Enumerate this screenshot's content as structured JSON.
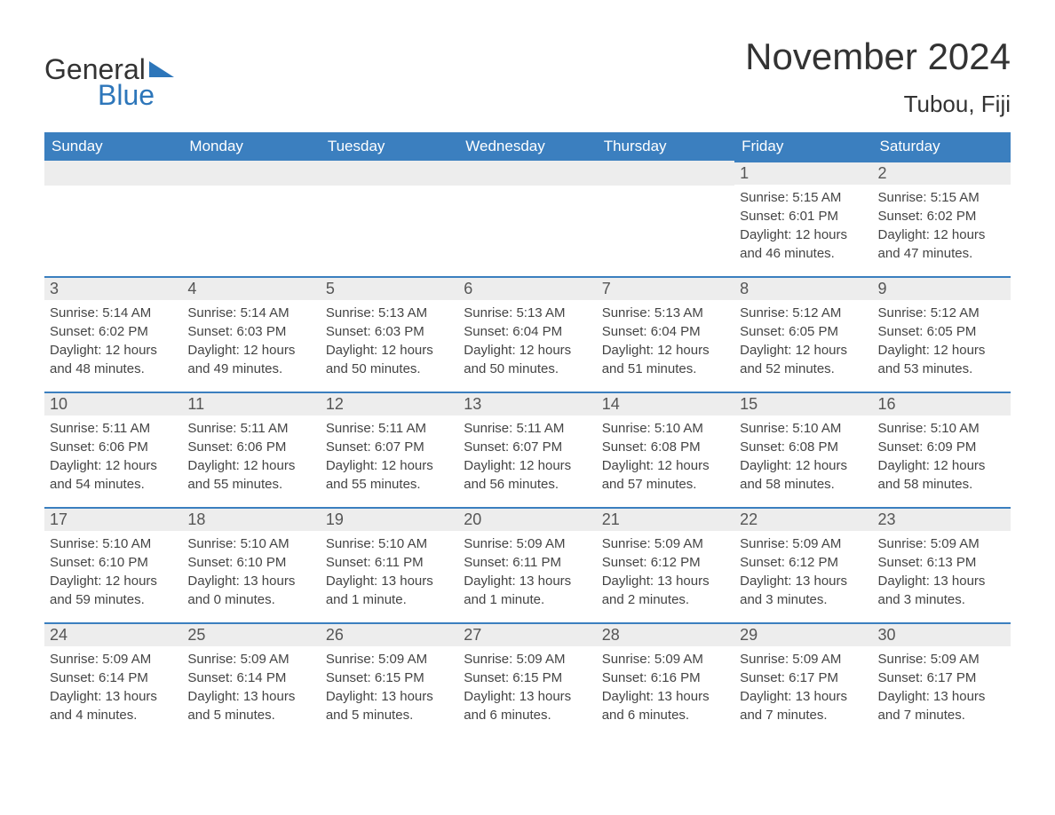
{
  "brand": {
    "word1": "General",
    "word2": "Blue",
    "accent_color": "#2d76ba"
  },
  "title": "November 2024",
  "location": "Tubou, Fiji",
  "colors": {
    "header_bg": "#3b7fbf",
    "header_text": "#ffffff",
    "daynum_bg": "#ededed",
    "daynum_border": "#3b7fbf",
    "body_text": "#444444",
    "page_bg": "#ffffff"
  },
  "fonts": {
    "title_size": 42,
    "location_size": 26,
    "dow_size": 17,
    "daynum_size": 18,
    "body_size": 15
  },
  "days_of_week": [
    "Sunday",
    "Monday",
    "Tuesday",
    "Wednesday",
    "Thursday",
    "Friday",
    "Saturday"
  ],
  "weeks": [
    [
      null,
      null,
      null,
      null,
      null,
      {
        "n": "1",
        "sunrise": "Sunrise: 5:15 AM",
        "sunset": "Sunset: 6:01 PM",
        "daylight": "Daylight: 12 hours and 46 minutes."
      },
      {
        "n": "2",
        "sunrise": "Sunrise: 5:15 AM",
        "sunset": "Sunset: 6:02 PM",
        "daylight": "Daylight: 12 hours and 47 minutes."
      }
    ],
    [
      {
        "n": "3",
        "sunrise": "Sunrise: 5:14 AM",
        "sunset": "Sunset: 6:02 PM",
        "daylight": "Daylight: 12 hours and 48 minutes."
      },
      {
        "n": "4",
        "sunrise": "Sunrise: 5:14 AM",
        "sunset": "Sunset: 6:03 PM",
        "daylight": "Daylight: 12 hours and 49 minutes."
      },
      {
        "n": "5",
        "sunrise": "Sunrise: 5:13 AM",
        "sunset": "Sunset: 6:03 PM",
        "daylight": "Daylight: 12 hours and 50 minutes."
      },
      {
        "n": "6",
        "sunrise": "Sunrise: 5:13 AM",
        "sunset": "Sunset: 6:04 PM",
        "daylight": "Daylight: 12 hours and 50 minutes."
      },
      {
        "n": "7",
        "sunrise": "Sunrise: 5:13 AM",
        "sunset": "Sunset: 6:04 PM",
        "daylight": "Daylight: 12 hours and 51 minutes."
      },
      {
        "n": "8",
        "sunrise": "Sunrise: 5:12 AM",
        "sunset": "Sunset: 6:05 PM",
        "daylight": "Daylight: 12 hours and 52 minutes."
      },
      {
        "n": "9",
        "sunrise": "Sunrise: 5:12 AM",
        "sunset": "Sunset: 6:05 PM",
        "daylight": "Daylight: 12 hours and 53 minutes."
      }
    ],
    [
      {
        "n": "10",
        "sunrise": "Sunrise: 5:11 AM",
        "sunset": "Sunset: 6:06 PM",
        "daylight": "Daylight: 12 hours and 54 minutes."
      },
      {
        "n": "11",
        "sunrise": "Sunrise: 5:11 AM",
        "sunset": "Sunset: 6:06 PM",
        "daylight": "Daylight: 12 hours and 55 minutes."
      },
      {
        "n": "12",
        "sunrise": "Sunrise: 5:11 AM",
        "sunset": "Sunset: 6:07 PM",
        "daylight": "Daylight: 12 hours and 55 minutes."
      },
      {
        "n": "13",
        "sunrise": "Sunrise: 5:11 AM",
        "sunset": "Sunset: 6:07 PM",
        "daylight": "Daylight: 12 hours and 56 minutes."
      },
      {
        "n": "14",
        "sunrise": "Sunrise: 5:10 AM",
        "sunset": "Sunset: 6:08 PM",
        "daylight": "Daylight: 12 hours and 57 minutes."
      },
      {
        "n": "15",
        "sunrise": "Sunrise: 5:10 AM",
        "sunset": "Sunset: 6:08 PM",
        "daylight": "Daylight: 12 hours and 58 minutes."
      },
      {
        "n": "16",
        "sunrise": "Sunrise: 5:10 AM",
        "sunset": "Sunset: 6:09 PM",
        "daylight": "Daylight: 12 hours and 58 minutes."
      }
    ],
    [
      {
        "n": "17",
        "sunrise": "Sunrise: 5:10 AM",
        "sunset": "Sunset: 6:10 PM",
        "daylight": "Daylight: 12 hours and 59 minutes."
      },
      {
        "n": "18",
        "sunrise": "Sunrise: 5:10 AM",
        "sunset": "Sunset: 6:10 PM",
        "daylight": "Daylight: 13 hours and 0 minutes."
      },
      {
        "n": "19",
        "sunrise": "Sunrise: 5:10 AM",
        "sunset": "Sunset: 6:11 PM",
        "daylight": "Daylight: 13 hours and 1 minute."
      },
      {
        "n": "20",
        "sunrise": "Sunrise: 5:09 AM",
        "sunset": "Sunset: 6:11 PM",
        "daylight": "Daylight: 13 hours and 1 minute."
      },
      {
        "n": "21",
        "sunrise": "Sunrise: 5:09 AM",
        "sunset": "Sunset: 6:12 PM",
        "daylight": "Daylight: 13 hours and 2 minutes."
      },
      {
        "n": "22",
        "sunrise": "Sunrise: 5:09 AM",
        "sunset": "Sunset: 6:12 PM",
        "daylight": "Daylight: 13 hours and 3 minutes."
      },
      {
        "n": "23",
        "sunrise": "Sunrise: 5:09 AM",
        "sunset": "Sunset: 6:13 PM",
        "daylight": "Daylight: 13 hours and 3 minutes."
      }
    ],
    [
      {
        "n": "24",
        "sunrise": "Sunrise: 5:09 AM",
        "sunset": "Sunset: 6:14 PM",
        "daylight": "Daylight: 13 hours and 4 minutes."
      },
      {
        "n": "25",
        "sunrise": "Sunrise: 5:09 AM",
        "sunset": "Sunset: 6:14 PM",
        "daylight": "Daylight: 13 hours and 5 minutes."
      },
      {
        "n": "26",
        "sunrise": "Sunrise: 5:09 AM",
        "sunset": "Sunset: 6:15 PM",
        "daylight": "Daylight: 13 hours and 5 minutes."
      },
      {
        "n": "27",
        "sunrise": "Sunrise: 5:09 AM",
        "sunset": "Sunset: 6:15 PM",
        "daylight": "Daylight: 13 hours and 6 minutes."
      },
      {
        "n": "28",
        "sunrise": "Sunrise: 5:09 AM",
        "sunset": "Sunset: 6:16 PM",
        "daylight": "Daylight: 13 hours and 6 minutes."
      },
      {
        "n": "29",
        "sunrise": "Sunrise: 5:09 AM",
        "sunset": "Sunset: 6:17 PM",
        "daylight": "Daylight: 13 hours and 7 minutes."
      },
      {
        "n": "30",
        "sunrise": "Sunrise: 5:09 AM",
        "sunset": "Sunset: 6:17 PM",
        "daylight": "Daylight: 13 hours and 7 minutes."
      }
    ]
  ]
}
